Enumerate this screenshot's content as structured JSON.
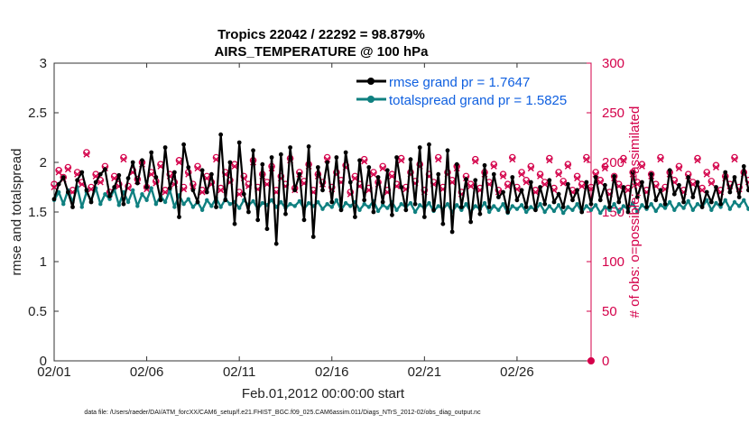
{
  "chart_data": {
    "type": "line",
    "title": "Tropics 22042 / 22292 = 98.879%",
    "subtitle": "AIRS_TEMPERATURE @ 100 hPa",
    "xlabel": "Feb.01,2012 00:00:00 start",
    "ylabel_left": "rmse and totalspread",
    "ylabel_right": "# of obs: o=possible; ×=assimilated",
    "footer": "data file: /Users/raeder/DAI/ATM_forcXX/CAM6_setup/f.e21.FHIST_BGC.f09_025.CAM6assim.011/Diags_NTrS_2012-02/obs_diag_output.nc",
    "x_ticks": [
      "02/01",
      "02/06",
      "02/11",
      "02/16",
      "02/21",
      "02/26"
    ],
    "x_tick_days": [
      0,
      5,
      10,
      15,
      20,
      25
    ],
    "xlim_days": [
      0,
      29
    ],
    "ylim_left": [
      0,
      3
    ],
    "yticks_left": [
      "0",
      "0.5",
      "1",
      "1.5",
      "2",
      "2.5",
      "3"
    ],
    "ylim_right": [
      0,
      300
    ],
    "yticks_right": [
      "0",
      "50",
      "100",
      "150",
      "200",
      "250",
      "300"
    ],
    "legend": [
      "rmse grand pr = 1.7647",
      "totalspread grand pr = 1.5825"
    ],
    "legend_position": "top-right",
    "time_step_days": 0.25,
    "series": [
      {
        "name": "rmse",
        "color": "#000000",
        "axis": "left",
        "values": [
          1.63,
          1.78,
          1.85,
          1.7,
          1.55,
          1.82,
          1.9,
          1.72,
          1.6,
          1.8,
          1.88,
          1.93,
          1.66,
          1.75,
          1.87,
          1.58,
          1.84,
          2.0,
          1.79,
          2.02,
          1.75,
          2.1,
          1.85,
          1.62,
          2.15,
          1.74,
          1.9,
          1.45,
          2.18,
          1.95,
          1.72,
          1.6,
          1.92,
          1.7,
          1.88,
          1.55,
          2.28,
          1.62,
          2.0,
          1.38,
          2.2,
          1.68,
          1.5,
          2.12,
          1.42,
          1.98,
          1.33,
          2.05,
          1.18,
          2.08,
          1.48,
          2.15,
          1.72,
          1.88,
          1.42,
          2.16,
          1.25,
          1.95,
          1.72,
          2.0,
          1.6,
          2.05,
          1.52,
          2.1,
          1.8,
          1.45,
          2.02,
          1.62,
          1.95,
          1.5,
          1.85,
          1.6,
          1.92,
          1.47,
          2.05,
          1.75,
          1.52,
          2.03,
          1.58,
          2.15,
          1.45,
          2.18,
          1.52,
          1.88,
          1.38,
          2.12,
          1.3,
          1.98,
          1.55,
          1.83,
          1.4,
          1.82,
          1.48,
          1.97,
          1.55,
          1.88,
          1.65,
          1.7,
          1.5,
          1.85,
          1.62,
          1.72,
          1.55,
          1.8,
          1.52,
          1.75,
          1.58,
          1.82,
          1.6,
          1.68,
          1.55,
          1.78,
          1.62,
          1.72,
          1.5,
          1.8,
          1.58,
          1.85,
          1.62,
          1.77,
          1.55,
          1.86,
          1.6,
          1.75,
          1.5,
          1.9,
          1.65,
          1.8,
          1.55,
          1.88,
          1.62,
          1.72,
          1.58,
          1.92,
          1.68,
          1.77,
          1.6,
          1.85,
          1.65,
          1.8,
          1.55,
          1.7,
          1.6,
          1.75,
          1.58,
          1.9,
          1.7,
          1.85,
          1.65,
          1.96,
          1.72,
          1.82,
          1.63,
          1.88,
          1.7,
          1.75,
          1.6,
          1.92,
          1.68,
          1.8,
          1.57,
          1.85,
          1.64,
          1.78,
          1.62,
          1.83,
          1.66,
          1.72,
          1.58,
          1.85,
          1.65,
          1.7,
          1.55,
          1.8,
          1.6,
          1.74,
          1.52,
          1.82,
          1.5,
          1.55,
          1.42,
          1.75,
          1.33,
          1.65,
          1.48,
          1.62,
          1.5,
          1.47
        ]
      },
      {
        "name": "totalspread",
        "color": "#0f8080",
        "axis": "left",
        "values": [
          1.62,
          1.7,
          1.58,
          1.72,
          1.6,
          1.75,
          1.55,
          1.7,
          1.62,
          1.74,
          1.58,
          1.68,
          1.63,
          1.73,
          1.57,
          1.7,
          1.6,
          1.72,
          1.56,
          1.68,
          1.62,
          1.74,
          1.58,
          1.66,
          1.6,
          1.72,
          1.55,
          1.67,
          1.58,
          1.63,
          1.55,
          1.6,
          1.52,
          1.62,
          1.56,
          1.64,
          1.55,
          1.63,
          1.58,
          1.6,
          1.54,
          1.62,
          1.57,
          1.61,
          1.53,
          1.59,
          1.57,
          1.62,
          1.55,
          1.6,
          1.54,
          1.58,
          1.56,
          1.61,
          1.53,
          1.59,
          1.56,
          1.6,
          1.53,
          1.58,
          1.55,
          1.62,
          1.52,
          1.59,
          1.56,
          1.6,
          1.52,
          1.58,
          1.55,
          1.61,
          1.51,
          1.57,
          1.54,
          1.6,
          1.52,
          1.58,
          1.55,
          1.59,
          1.5,
          1.57,
          1.54,
          1.59,
          1.51,
          1.56,
          1.53,
          1.58,
          1.5,
          1.57,
          1.52,
          1.58,
          1.5,
          1.56,
          1.53,
          1.59,
          1.5,
          1.56,
          1.52,
          1.58,
          1.49,
          1.56,
          1.53,
          1.57,
          1.5,
          1.55,
          1.52,
          1.58,
          1.5,
          1.56,
          1.51,
          1.57,
          1.49,
          1.55,
          1.52,
          1.58,
          1.5,
          1.56,
          1.52,
          1.57,
          1.49,
          1.55,
          1.52,
          1.58,
          1.5,
          1.56,
          1.53,
          1.59,
          1.5,
          1.57,
          1.53,
          1.58,
          1.51,
          1.57,
          1.54,
          1.6,
          1.52,
          1.58,
          1.54,
          1.61,
          1.52,
          1.58,
          1.55,
          1.62,
          1.52,
          1.59,
          1.55,
          1.62,
          1.53,
          1.6,
          1.56,
          1.62,
          1.53,
          1.6,
          1.55,
          1.63,
          1.54,
          1.6,
          1.56,
          1.62,
          1.52,
          1.58,
          1.55,
          1.61,
          1.52,
          1.58,
          1.54,
          1.6,
          1.51,
          1.58,
          1.54,
          1.6,
          1.5,
          1.57,
          1.55,
          1.62,
          1.5,
          1.56,
          1.52,
          1.6,
          1.48,
          1.55,
          1.52,
          1.58,
          1.47,
          1.62,
          1.5,
          1.68,
          1.52,
          1.48
        ]
      },
      {
        "name": "obs possible",
        "color": "#d4004a",
        "axis": "right",
        "marker": "o",
        "values": [
          178,
          192,
          185,
          195,
          172,
          190,
          180,
          210,
          175,
          188,
          182,
          196,
          170,
          186,
          178,
          205,
          176,
          192,
          183,
          200,
          175,
          190,
          181,
          198,
          172,
          188,
          180,
          202,
          175,
          190,
          178,
          196,
          172,
          186,
          180,
          205,
          174,
          190,
          182,
          198,
          170,
          186,
          178,
          202,
          175,
          188,
          180,
          196,
          172,
          186,
          178,
          204,
          174,
          190,
          181,
          198,
          172,
          188,
          180,
          205,
          175,
          190,
          182,
          197,
          170,
          186,
          178,
          203,
          174,
          190,
          180,
          196,
          172,
          188,
          178,
          204,
          175,
          190,
          181,
          198,
          172,
          188,
          180,
          205,
          175,
          190,
          182,
          196,
          170,
          186,
          178,
          203,
          174,
          190,
          180,
          198,
          172,
          188,
          178,
          205,
          175,
          190,
          182,
          196,
          172,
          188,
          180,
          204,
          174,
          190,
          181,
          198,
          172,
          186,
          178,
          205,
          175,
          190,
          182,
          196,
          170,
          186,
          178,
          204,
          174,
          190,
          180,
          198,
          172,
          188,
          178,
          205,
          175,
          190,
          182,
          196,
          172,
          188,
          180,
          204,
          174,
          190,
          181,
          197,
          172,
          186,
          178,
          205,
          175,
          190,
          182,
          196,
          170,
          186,
          178,
          204,
          174,
          190,
          180,
          198,
          172,
          188,
          178,
          205,
          175,
          190,
          182,
          196,
          172,
          188,
          180,
          204,
          174,
          190,
          181,
          198,
          175,
          190,
          185,
          198,
          178,
          192,
          188,
          200,
          180,
          195,
          190,
          210
        ]
      },
      {
        "name": "obs assimilated",
        "color": "#d4004a",
        "axis": "right",
        "marker": "x",
        "values": [
          175,
          190,
          183,
          193,
          170,
          188,
          178,
          208,
          173,
          186,
          180,
          194,
          168,
          184,
          176,
          203,
          174,
          190,
          181,
          198,
          173,
          188,
          179,
          196,
          170,
          186,
          178,
          200,
          173,
          188,
          176,
          194,
          170,
          184,
          178,
          203,
          172,
          188,
          180,
          196,
          168,
          184,
          176,
          200,
          173,
          186,
          178,
          194,
          170,
          184,
          176,
          202,
          172,
          188,
          179,
          196,
          170,
          186,
          178,
          203,
          173,
          188,
          180,
          195,
          168,
          184,
          176,
          201,
          172,
          188,
          178,
          194,
          170,
          186,
          176,
          202,
          173,
          188,
          179,
          196,
          170,
          186,
          178,
          203,
          173,
          188,
          180,
          194,
          168,
          184,
          176,
          201,
          172,
          188,
          178,
          196,
          170,
          186,
          176,
          203,
          173,
          188,
          180,
          194,
          170,
          186,
          178,
          202,
          172,
          188,
          179,
          196,
          170,
          184,
          176,
          203,
          173,
          188,
          180,
          194,
          168,
          184,
          176,
          202,
          172,
          188,
          178,
          196,
          170,
          186,
          176,
          203,
          173,
          188,
          180,
          194,
          170,
          186,
          178,
          202,
          172,
          188,
          179,
          195,
          170,
          184,
          176,
          203,
          173,
          188,
          180,
          194,
          168,
          184,
          176,
          202,
          172,
          188,
          178,
          196,
          170,
          186,
          176,
          203,
          173,
          188,
          180,
          194,
          170,
          186,
          178,
          202,
          172,
          188,
          179,
          196,
          172,
          186,
          180,
          194,
          174,
          188,
          182,
          196,
          176,
          190,
          184,
          210
        ]
      }
    ]
  }
}
